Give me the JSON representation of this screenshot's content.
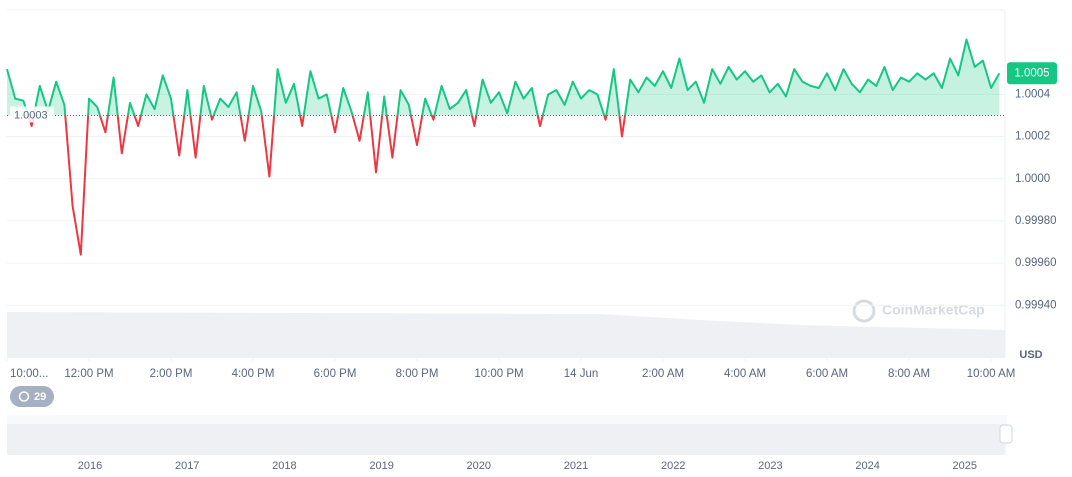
{
  "chart_data": {
    "type": "line",
    "currency": "USD",
    "watermark": "CoinMarketCap",
    "baseline": 1.0003,
    "last_price": 1.0005,
    "colors": {
      "up": "#16c784",
      "down": "#ea3943"
    },
    "values": [
      1.00052,
      1.00038,
      1.00037,
      1.00025,
      1.00044,
      1.00032,
      1.00046,
      1.00035,
      0.99987,
      0.99964,
      1.00038,
      1.00034,
      1.00022,
      1.00048,
      1.00012,
      1.00036,
      1.00025,
      1.0004,
      1.00033,
      1.00049,
      1.00038,
      1.00011,
      1.00042,
      1.0001,
      1.00044,
      1.00028,
      1.00038,
      1.00034,
      1.00041,
      1.00018,
      1.00044,
      1.00032,
      1.00001,
      1.00052,
      1.00036,
      1.00045,
      1.00025,
      1.00051,
      1.00038,
      1.0004,
      1.00022,
      1.00043,
      1.00032,
      1.00018,
      1.00041,
      1.00003,
      1.00039,
      1.0001,
      1.00042,
      1.00035,
      1.00016,
      1.00038,
      1.00028,
      1.00044,
      1.00033,
      1.00036,
      1.00042,
      1.00025,
      1.00047,
      1.00036,
      1.00041,
      1.00031,
      1.00046,
      1.00038,
      1.00043,
      1.00025,
      1.0004,
      1.00042,
      1.00035,
      1.00046,
      1.00038,
      1.00042,
      1.0004,
      1.00028,
      1.00052,
      1.0002,
      1.00047,
      1.00041,
      1.00048,
      1.00044,
      1.00051,
      1.00043,
      1.00057,
      1.00042,
      1.00046,
      1.00036,
      1.00052,
      1.00045,
      1.00053,
      1.00047,
      1.00051,
      1.00046,
      1.00049,
      1.00041,
      1.00045,
      1.00039,
      1.00052,
      1.00046,
      1.00044,
      1.00043,
      1.0005,
      1.00042,
      1.00052,
      1.00045,
      1.00041,
      1.00047,
      1.00044,
      1.00053,
      1.00042,
      1.00048,
      1.00046,
      1.0005,
      1.00047,
      1.0005,
      1.00043,
      1.00057,
      1.00049,
      1.00066,
      1.00053,
      1.00056,
      1.00043,
      1.0005
    ],
    "xlim": [
      0,
      121.7
    ],
    "xticks": [
      {
        "value": 0,
        "label": "10:00..."
      },
      {
        "value": 10,
        "label": "12:00 PM"
      },
      {
        "value": 20,
        "label": "2:00 PM"
      },
      {
        "value": 30,
        "label": "4:00 PM"
      },
      {
        "value": 40,
        "label": "6:00 PM"
      },
      {
        "value": 50,
        "label": "8:00 PM"
      },
      {
        "value": 60,
        "label": "10:00 PM"
      },
      {
        "value": 70,
        "label": "14 Jun"
      },
      {
        "value": 80,
        "label": "2:00 AM"
      },
      {
        "value": 90,
        "label": "4:00 AM"
      },
      {
        "value": 100,
        "label": "6:00 AM"
      },
      {
        "value": 110,
        "label": "8:00 AM"
      },
      {
        "value": 120,
        "label": "10:00 AM"
      }
    ],
    "ylim": [
      0.99915,
      1.0008
    ],
    "yticks": [
      {
        "value": 0.9994,
        "label": "0.99940"
      },
      {
        "value": 0.9996,
        "label": "0.99960"
      },
      {
        "value": 0.9998,
        "label": "0.99980"
      },
      {
        "value": 1,
        "label": "1.0000"
      },
      1.0002,
      1.0004
    ],
    "grid": true
  },
  "navigator": {
    "years": [
      "2016",
      "2017",
      "2018",
      "2019",
      "2020",
      "2021",
      "2022",
      "2023",
      "2024",
      "2025"
    ]
  },
  "badge": {
    "count": 29
  }
}
